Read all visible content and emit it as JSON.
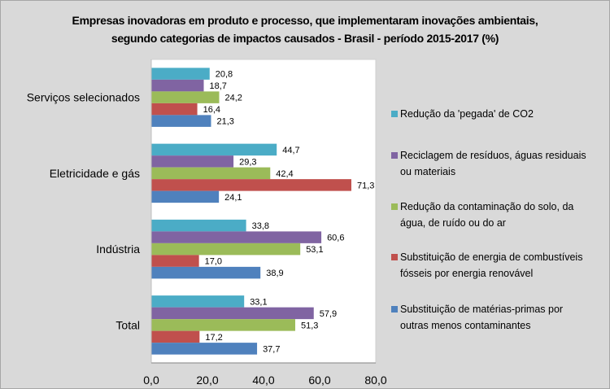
{
  "chart_data": {
    "type": "bar",
    "orientation": "horizontal",
    "title": "Empresas inovadoras em produto e processo, que implementaram inovações ambientais, segundo categorias de impactos causados - Brasil - período 2015-2017  (%)",
    "title_lines": [
      "Empresas inovadoras em produto e processo, que implementaram inovações ambientais,",
      "segundo categorias de impactos causados - Brasil - período 2015-2017  (%)"
    ],
    "xlabel": "",
    "ylabel": "",
    "xlim": [
      0,
      80
    ],
    "x_ticks": [
      "0,0",
      "20,0",
      "40,0",
      "60,0",
      "80,0"
    ],
    "x_tick_values": [
      0,
      20,
      40,
      60,
      80
    ],
    "grid": false,
    "legend_position": "right",
    "categories": [
      "Serviços selecionados",
      "Eletricidade e gás",
      "Indústria",
      "Total"
    ],
    "series": [
      {
        "name": "Redução da 'pegada' de CO2",
        "legend_lines": [
          "Redução da 'pegada' de CO2"
        ],
        "color": "#4bacc6",
        "values": [
          20.8,
          44.7,
          33.8,
          33.1
        ],
        "labels": [
          "20,8",
          "44,7",
          "33,8",
          "33,1"
        ]
      },
      {
        "name": "Reciclagem de resíduos, águas residuais ou materiais",
        "legend_lines": [
          "Reciclagem de resíduos, águas residuais",
          "ou materiais"
        ],
        "color": "#8064a2",
        "values": [
          18.7,
          29.3,
          60.6,
          57.9
        ],
        "labels": [
          "18,7",
          "29,3",
          "60,6",
          "57,9"
        ]
      },
      {
        "name": "Redução da contaminação do solo, da água, de ruído ou do ar",
        "legend_lines": [
          "Redução da contaminação do solo, da",
          "água, de ruído ou do ar"
        ],
        "color": "#9bbb59",
        "values": [
          24.2,
          42.4,
          53.1,
          51.3
        ],
        "labels": [
          "24,2",
          "42,4",
          "53,1",
          "51,3"
        ]
      },
      {
        "name": "Substituição de energia de combustíveis fósseis por energia renovável",
        "legend_lines": [
          "Substituição de energia de combustíveis",
          "fósseis por energia renovável"
        ],
        "color": "#c0504d",
        "values": [
          16.4,
          71.3,
          17.0,
          17.2
        ],
        "labels": [
          "16,4",
          "71,3",
          "17,0",
          "17,2"
        ]
      },
      {
        "name": "Substituição de matérias-primas por outras menos contaminantes",
        "legend_lines": [
          "Substituição de matérias-primas por",
          "outras menos contaminantes"
        ],
        "color": "#4f81bd",
        "values": [
          21.3,
          24.1,
          38.9,
          37.7
        ],
        "labels": [
          "21,3",
          "24,1",
          "38,9",
          "37,7"
        ]
      }
    ]
  }
}
